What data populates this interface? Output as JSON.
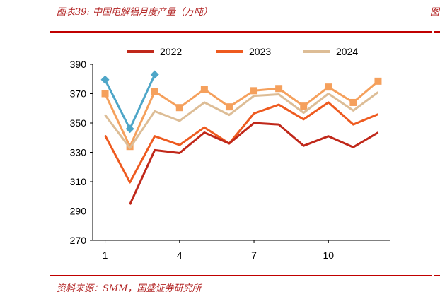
{
  "header": {
    "figure_title": "图表39:  中国电解铝月度产量（万吨）",
    "right_fragment": "图"
  },
  "source": "资料来源：SMM，国盛证券研究所",
  "chart_data": {
    "type": "line",
    "x": [
      1,
      2,
      3,
      4,
      5,
      6,
      7,
      8,
      9,
      10,
      11,
      12
    ],
    "xticks": [
      "1",
      "4",
      "7",
      "10"
    ],
    "ylim": [
      270,
      390
    ],
    "yticks": [
      270,
      290,
      310,
      330,
      350,
      370,
      390
    ],
    "legend_position": "top",
    "series": [
      {
        "name": "2022",
        "color": "#c0281a",
        "marker": "none",
        "values": [
          null,
          294.5,
          331.5,
          329.5,
          343.5,
          336,
          350,
          349,
          334.5,
          341,
          333.5,
          343.5
        ]
      },
      {
        "name": "2023",
        "color": "#ee5a1f",
        "marker": "none",
        "values": [
          341.5,
          309.5,
          341,
          335,
          347,
          336,
          356.5,
          362.5,
          352.5,
          364,
          349,
          356
        ]
      },
      {
        "name": "2024",
        "color": "#ddbd96",
        "marker": "none",
        "values": [
          355.5,
          333,
          358,
          351.5,
          364,
          355.5,
          368.5,
          369.5,
          357,
          370,
          358.5,
          371
        ]
      },
      {
        "name": "",
        "color": "#f5a05c",
        "marker": "square",
        "values": [
          370,
          334,
          371.5,
          360.5,
          373,
          361,
          372,
          373.5,
          361.5,
          374.5,
          364,
          378.5
        ]
      },
      {
        "name": "",
        "color": "#4ea6c8",
        "marker": "diamond",
        "values": [
          379.5,
          346,
          383,
          null,
          null,
          null,
          null,
          null,
          null,
          null,
          null,
          null
        ]
      }
    ]
  }
}
